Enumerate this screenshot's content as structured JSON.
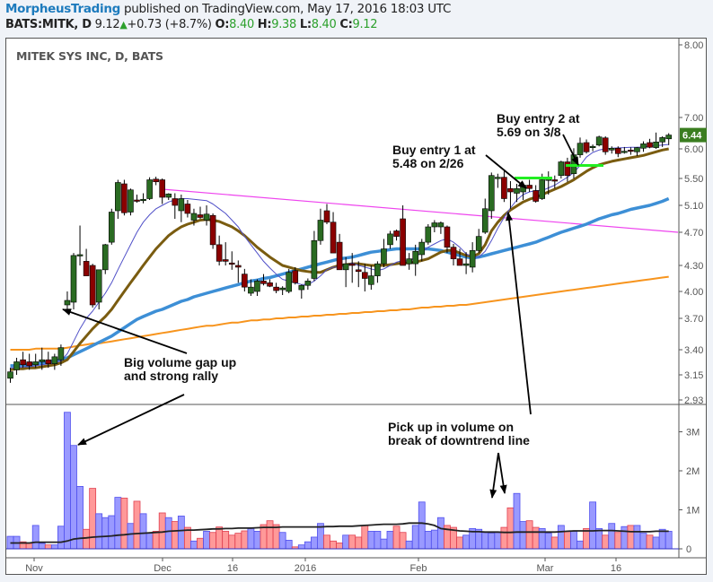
{
  "header": {
    "author": "MorpheusTrading",
    "published": " published on TradingView.com, May 17, 2016 18:03 UTC",
    "symbol": "BATS:MITK, D",
    "last": "9.12",
    "change": "+0.73 (+8.7%)",
    "o_label": "O:",
    "o": "8.40",
    "h_label": "H:",
    "h": "9.38",
    "l_label": "L:",
    "l": "8.40",
    "c_label": "C:",
    "c": "9.12"
  },
  "chart_title": "MITEK SYS INC, D, BATS",
  "colors": {
    "up": "#2a6b22",
    "down": "#8b0000",
    "sma10": "#5050c8",
    "sma20": "#7a5c10",
    "sma50": "#3d8fd6",
    "sma200": "#f7941d",
    "trendline": "#ee44ee",
    "buy_line": "#22ee22",
    "vol_up": "#9999ff",
    "vol_down": "#ff9999",
    "vol_ma": "#222222",
    "price_badge": "#3a7d20"
  },
  "annotations": {
    "gap": "Big volume gap up\nand strong rally",
    "entry1": "Buy entry 1 at\n5.48 on 2/26",
    "entry2": "Buy entry 2 at\n5.69 on 3/8",
    "volume": "Pick up in volume on\nbreak of downtrend line"
  },
  "chart_data": [
    {
      "type": "candlestick",
      "title": "MITEK SYS INC, D, BATS",
      "price_axis_ticks": [
        "8.00",
        "7.00",
        "6.44",
        "6.00",
        "5.50",
        "5.10",
        "4.70",
        "4.30",
        "4.00",
        "3.70",
        "3.40",
        "3.15",
        "2.93"
      ],
      "last_price_label": "6.44",
      "x_tick_labels": [
        "Nov",
        "Dec",
        "16",
        "2016",
        "Feb",
        "Mar",
        "16"
      ],
      "indicators": [
        "SMA10 (thin blue)",
        "SMA20 (brown)",
        "SMA50 (blue)",
        "SMA200 (orange)",
        "Downtrend line (magenta)"
      ],
      "buy_entries": [
        {
          "label": "Buy entry 1",
          "price": 5.48,
          "date": "2/26"
        },
        {
          "label": "Buy entry 2",
          "price": 5.69,
          "date": "3/8"
        }
      ],
      "candles": [
        [
          3.12,
          3.22,
          3.08,
          3.18
        ],
        [
          3.2,
          3.32,
          3.15,
          3.28
        ],
        [
          3.3,
          3.38,
          3.22,
          3.25
        ],
        [
          3.28,
          3.36,
          3.2,
          3.24
        ],
        [
          3.25,
          3.36,
          3.22,
          3.28
        ],
        [
          3.28,
          3.42,
          3.2,
          3.3
        ],
        [
          3.3,
          3.38,
          3.22,
          3.26
        ],
        [
          3.26,
          3.36,
          3.2,
          3.33
        ],
        [
          3.3,
          3.45,
          3.24,
          3.42
        ],
        [
          3.85,
          4.0,
          3.78,
          3.9
        ],
        [
          3.88,
          4.45,
          3.8,
          4.42
        ],
        [
          4.42,
          4.8,
          4.3,
          4.43
        ],
        [
          4.35,
          4.5,
          4.22,
          4.18
        ],
        [
          4.3,
          4.32,
          3.82,
          3.85
        ],
        [
          3.88,
          4.25,
          3.8,
          4.25
        ],
        [
          4.25,
          4.56,
          4.2,
          4.55
        ],
        [
          4.58,
          5.05,
          4.55,
          5.0
        ],
        [
          5.02,
          5.48,
          4.9,
          5.44
        ],
        [
          5.42,
          5.48,
          4.95,
          4.99
        ],
        [
          5.0,
          5.35,
          4.95,
          5.33
        ],
        [
          5.18,
          5.26,
          5.14,
          5.17
        ],
        [
          5.17,
          5.28,
          5.13,
          5.19
        ],
        [
          5.2,
          5.52,
          5.18,
          5.48
        ],
        [
          5.49,
          5.53,
          5.4,
          5.45
        ],
        [
          5.48,
          5.5,
          5.12,
          5.22
        ],
        [
          5.22,
          5.28,
          5.18,
          5.27
        ],
        [
          5.2,
          5.28,
          4.9,
          5.1
        ],
        [
          5.02,
          5.26,
          4.85,
          5.2
        ],
        [
          5.12,
          5.18,
          4.92,
          4.98
        ],
        [
          4.88,
          5.05,
          4.8,
          4.98
        ],
        [
          4.96,
          5.08,
          4.9,
          4.92
        ],
        [
          4.88,
          5.1,
          4.8,
          4.97
        ],
        [
          4.95,
          4.98,
          4.5,
          4.55
        ],
        [
          4.55,
          4.66,
          4.3,
          4.35
        ],
        [
          4.37,
          4.58,
          4.3,
          4.35
        ],
        [
          4.33,
          4.47,
          4.25,
          4.32
        ],
        [
          4.3,
          4.36,
          4.1,
          4.28
        ],
        [
          4.2,
          4.26,
          4.0,
          4.05
        ],
        [
          3.98,
          4.14,
          3.95,
          4.05
        ],
        [
          4.0,
          4.14,
          3.95,
          4.12
        ],
        [
          4.12,
          4.2,
          4.07,
          4.09
        ],
        [
          4.1,
          4.14,
          4.05,
          4.06
        ],
        [
          4.05,
          4.1,
          3.98,
          4.01
        ],
        [
          4.02,
          4.06,
          3.96,
          4.04
        ],
        [
          4.0,
          4.26,
          3.98,
          4.22
        ],
        [
          4.24,
          4.28,
          4.08,
          4.1
        ],
        [
          4.02,
          4.08,
          3.92,
          4.07
        ],
        [
          4.07,
          4.15,
          4.02,
          4.12
        ],
        [
          4.15,
          4.72,
          4.12,
          4.6
        ],
        [
          4.6,
          5.05,
          4.55,
          4.88
        ],
        [
          5.02,
          5.12,
          4.82,
          4.85
        ],
        [
          4.85,
          5.0,
          4.45,
          4.45
        ],
        [
          4.58,
          4.68,
          4.3,
          4.25
        ],
        [
          4.25,
          4.4,
          4.05,
          4.32
        ],
        [
          4.32,
          4.45,
          4.1,
          4.3
        ],
        [
          4.25,
          4.35,
          4.05,
          4.23
        ],
        [
          4.22,
          4.32,
          4.0,
          4.15
        ],
        [
          4.08,
          4.3,
          4.02,
          4.18
        ],
        [
          4.18,
          4.35,
          4.1,
          4.32
        ],
        [
          4.32,
          4.62,
          4.28,
          4.5
        ],
        [
          4.55,
          4.72,
          4.5,
          4.68
        ],
        [
          4.72,
          4.74,
          4.6,
          4.65
        ],
        [
          4.9,
          5.1,
          4.3,
          4.3
        ],
        [
          4.32,
          4.45,
          4.25,
          4.38
        ],
        [
          4.32,
          4.55,
          4.18,
          4.47
        ],
        [
          4.43,
          4.62,
          4.35,
          4.58
        ],
        [
          4.58,
          4.82,
          4.55,
          4.78
        ],
        [
          4.78,
          4.88,
          4.7,
          4.84
        ],
        [
          4.78,
          4.86,
          4.68,
          4.84
        ],
        [
          4.78,
          4.8,
          4.45,
          4.52
        ],
        [
          4.52,
          4.56,
          4.3,
          4.38
        ],
        [
          4.38,
          4.5,
          4.33,
          4.3
        ],
        [
          4.3,
          4.46,
          4.2,
          4.32
        ],
        [
          4.28,
          4.58,
          4.22,
          4.48
        ],
        [
          4.48,
          4.75,
          4.45,
          4.65
        ],
        [
          4.7,
          5.2,
          4.68,
          5.05
        ],
        [
          5.02,
          5.6,
          4.9,
          5.55
        ],
        [
          5.5,
          5.58,
          5.36,
          5.52
        ],
        [
          5.52,
          5.62,
          5.15,
          5.2
        ],
        [
          5.35,
          5.46,
          5.05,
          5.3
        ],
        [
          5.28,
          5.42,
          5.15,
          5.35
        ],
        [
          5.3,
          5.44,
          5.18,
          5.4
        ],
        [
          5.4,
          5.48,
          5.3,
          5.35
        ],
        [
          5.32,
          5.4,
          5.14,
          5.16
        ],
        [
          5.2,
          5.58,
          5.18,
          5.48
        ],
        [
          5.48,
          5.62,
          5.26,
          5.49
        ],
        [
          5.48,
          5.55,
          5.35,
          5.47
        ],
        [
          5.55,
          5.8,
          5.5,
          5.78
        ],
        [
          5.78,
          5.85,
          5.45,
          5.55
        ],
        [
          5.58,
          6.02,
          5.5,
          5.9
        ],
        [
          5.9,
          6.36,
          5.85,
          6.18
        ],
        [
          6.2,
          6.3,
          5.92,
          5.95
        ],
        [
          6.04,
          6.14,
          5.96,
          6.08
        ],
        [
          6.12,
          6.42,
          6.08,
          6.38
        ],
        [
          6.35,
          6.4,
          5.9,
          5.95
        ],
        [
          5.98,
          6.08,
          5.92,
          6.02
        ],
        [
          6.02,
          6.08,
          5.86,
          5.92
        ],
        [
          5.95,
          6.06,
          5.92,
          5.96
        ],
        [
          5.98,
          6.05,
          5.9,
          5.97
        ],
        [
          5.95,
          6.06,
          5.88,
          6.04
        ],
        [
          6.02,
          6.24,
          5.95,
          6.16
        ],
        [
          6.2,
          6.32,
          6.02,
          6.05
        ],
        [
          6.04,
          6.52,
          6.0,
          6.22
        ],
        [
          6.22,
          6.4,
          6.06,
          6.36
        ],
        [
          6.32,
          6.5,
          6.12,
          6.44
        ]
      ]
    },
    {
      "type": "bar",
      "title": "Volume",
      "y_axis_ticks": [
        "3M",
        "2M",
        "1M",
        "0"
      ],
      "x_tick_labels": [
        "Nov",
        "Dec",
        "16",
        "2016",
        "Feb",
        "Mar",
        "16"
      ],
      "volumes_M": [
        0.32,
        0.32,
        0.18,
        0.14,
        0.6,
        0.14,
        0.1,
        0.1,
        0.58,
        3.5,
        2.65,
        1.6,
        0.5,
        1.55,
        0.9,
        0.8,
        0.85,
        1.32,
        1.3,
        0.65,
        1.22,
        0.9,
        0.4,
        0.45,
        0.92,
        0.8,
        0.7,
        0.84,
        0.55,
        0.2,
        0.27,
        0.45,
        0.42,
        0.56,
        0.45,
        0.35,
        0.4,
        0.46,
        0.52,
        0.45,
        0.62,
        0.72,
        0.62,
        0.42,
        0.22,
        0.05,
        0.1,
        0.18,
        0.3,
        0.65,
        0.35,
        0.2,
        0.15,
        0.35,
        0.35,
        0.3,
        0.6,
        0.45,
        0.45,
        0.25,
        0.45,
        0.58,
        0.42,
        0.2,
        0.6,
        1.2,
        0.45,
        0.48,
        0.8,
        0.6,
        0.55,
        0.3,
        0.35,
        0.52,
        0.5,
        0.42,
        0.4,
        0.42,
        0.55,
        1.05,
        1.42,
        0.7,
        0.72,
        0.55,
        0.52,
        0.4,
        0.3,
        0.6,
        0.45,
        0.45,
        0.2,
        0.52,
        1.2,
        0.52,
        0.35,
        0.65,
        0.42,
        0.57,
        0.6,
        0.6,
        0.4,
        0.35,
        0.3,
        0.5,
        0.45
      ],
      "vol_ma_M": [
        0.15,
        0.15,
        0.15,
        0.15,
        0.17,
        0.17,
        0.17,
        0.17,
        0.17,
        0.2,
        0.25,
        0.27,
        0.28,
        0.3,
        0.31,
        0.32,
        0.33,
        0.35,
        0.36,
        0.38,
        0.39,
        0.4,
        0.41,
        0.42,
        0.43,
        0.45,
        0.46,
        0.47,
        0.48,
        0.48,
        0.49,
        0.5,
        0.51,
        0.51,
        0.52,
        0.52,
        0.53,
        0.53,
        0.53,
        0.54,
        0.55,
        0.55,
        0.55,
        0.56,
        0.56,
        0.56,
        0.56,
        0.56,
        0.56,
        0.56,
        0.57,
        0.57,
        0.58,
        0.58,
        0.58,
        0.59,
        0.6,
        0.61,
        0.62,
        0.63,
        0.63,
        0.63,
        0.64,
        0.66,
        0.66,
        0.66,
        0.64,
        0.6,
        0.52,
        0.5,
        0.48,
        0.46,
        0.45,
        0.44,
        0.44,
        0.43,
        0.43,
        0.43,
        0.42,
        0.42,
        0.43,
        0.43,
        0.43,
        0.43,
        0.43,
        0.43,
        0.43,
        0.44,
        0.45,
        0.46,
        0.46,
        0.46,
        0.46,
        0.47,
        0.47,
        0.47,
        0.46,
        0.45,
        0.44,
        0.44,
        0.44,
        0.44,
        0.45,
        0.45,
        0.45
      ]
    }
  ],
  "ma": {
    "sma10": [
      3.22,
      3.22,
      3.23,
      3.23,
      3.24,
      3.25,
      3.26,
      3.27,
      3.29,
      3.36,
      3.48,
      3.6,
      3.7,
      3.78,
      3.88,
      3.98,
      4.1,
      4.25,
      4.4,
      4.55,
      4.7,
      4.85,
      4.96,
      5.05,
      5.1,
      5.15,
      5.18,
      5.2,
      5.2,
      5.19,
      5.18,
      5.17,
      5.12,
      5.05,
      4.98,
      4.88,
      4.78,
      4.65,
      4.55,
      4.45,
      4.35,
      4.27,
      4.2,
      4.14,
      4.12,
      4.1,
      4.08,
      4.08,
      4.12,
      4.18,
      4.25,
      4.28,
      4.28,
      4.3,
      4.33,
      4.3,
      4.28,
      4.26,
      4.24,
      4.26,
      4.3,
      4.34,
      4.36,
      4.35,
      4.4,
      4.46,
      4.52,
      4.56,
      4.6,
      4.62,
      4.58,
      4.52,
      4.44,
      4.4,
      4.4,
      4.47,
      4.6,
      4.76,
      4.92,
      5.06,
      5.18,
      5.26,
      5.3,
      5.32,
      5.32,
      5.36,
      5.4,
      5.46,
      5.52,
      5.6,
      5.72,
      5.86,
      5.94,
      5.98,
      6.0,
      6.02,
      6.03,
      6.04,
      6.05,
      6.05,
      6.06,
      6.08,
      6.1,
      6.12,
      6.14
    ],
    "sma20": [
      3.2,
      3.21,
      3.21,
      3.22,
      3.22,
      3.23,
      3.24,
      3.25,
      3.27,
      3.3,
      3.38,
      3.46,
      3.53,
      3.6,
      3.66,
      3.72,
      3.8,
      3.9,
      4.0,
      4.1,
      4.2,
      4.3,
      4.4,
      4.5,
      4.58,
      4.66,
      4.72,
      4.78,
      4.82,
      4.85,
      4.88,
      4.89,
      4.88,
      4.86,
      4.82,
      4.78,
      4.72,
      4.66,
      4.59,
      4.52,
      4.46,
      4.4,
      4.35,
      4.3,
      4.28,
      4.26,
      4.24,
      4.23,
      4.22,
      4.22,
      4.25,
      4.28,
      4.3,
      4.31,
      4.32,
      4.32,
      4.31,
      4.3,
      4.3,
      4.3,
      4.31,
      4.32,
      4.33,
      4.33,
      4.34,
      4.36,
      4.38,
      4.42,
      4.46,
      4.48,
      4.48,
      4.45,
      4.42,
      4.41,
      4.44,
      4.55,
      4.72,
      4.85,
      4.95,
      5.03,
      5.09,
      5.15,
      5.19,
      5.22,
      5.26,
      5.3,
      5.34,
      5.38,
      5.43,
      5.48,
      5.55,
      5.62,
      5.68,
      5.73,
      5.76,
      5.79,
      5.81,
      5.83,
      5.85,
      5.87,
      5.89,
      5.92,
      5.95,
      5.98,
      6.0
    ],
    "sma50": [
      3.24,
      3.24,
      3.25,
      3.25,
      3.26,
      3.27,
      3.28,
      3.29,
      3.3,
      3.32,
      3.35,
      3.38,
      3.41,
      3.44,
      3.47,
      3.5,
      3.53,
      3.57,
      3.61,
      3.65,
      3.69,
      3.72,
      3.75,
      3.78,
      3.8,
      3.83,
      3.86,
      3.89,
      3.91,
      3.94,
      3.96,
      3.98,
      4.0,
      4.02,
      4.04,
      4.06,
      4.08,
      4.1,
      4.12,
      4.13,
      4.15,
      4.16,
      4.18,
      4.2,
      4.22,
      4.24,
      4.26,
      4.28,
      4.3,
      4.32,
      4.34,
      4.36,
      4.38,
      4.39,
      4.4,
      4.42,
      4.44,
      4.46,
      4.47,
      4.48,
      4.49,
      4.5,
      4.5,
      4.5,
      4.5,
      4.5,
      4.5,
      4.49,
      4.48,
      4.46,
      4.44,
      4.42,
      4.4,
      4.39,
      4.4,
      4.42,
      4.44,
      4.46,
      4.48,
      4.5,
      4.52,
      4.54,
      4.56,
      4.58,
      4.61,
      4.64,
      4.67,
      4.7,
      4.73,
      4.76,
      4.79,
      4.82,
      4.86,
      4.9,
      4.93,
      4.96,
      4.98,
      5.01,
      5.04,
      5.06,
      5.08,
      5.1,
      5.13,
      5.16,
      5.2
    ],
    "sma200": [
      3.4,
      3.4,
      3.4,
      3.4,
      3.41,
      3.41,
      3.41,
      3.41,
      3.41,
      3.42,
      3.43,
      3.44,
      3.45,
      3.46,
      3.46,
      3.47,
      3.48,
      3.49,
      3.5,
      3.51,
      3.52,
      3.53,
      3.54,
      3.55,
      3.56,
      3.57,
      3.58,
      3.59,
      3.6,
      3.61,
      3.62,
      3.63,
      3.63,
      3.64,
      3.65,
      3.66,
      3.66,
      3.67,
      3.68,
      3.68,
      3.69,
      3.69,
      3.7,
      3.7,
      3.71,
      3.71,
      3.72,
      3.72,
      3.73,
      3.73,
      3.74,
      3.74,
      3.75,
      3.75,
      3.76,
      3.76,
      3.77,
      3.77,
      3.78,
      3.78,
      3.79,
      3.79,
      3.8,
      3.8,
      3.81,
      3.82,
      3.82,
      3.83,
      3.83,
      3.84,
      3.84,
      3.85,
      3.85,
      3.86,
      3.87,
      3.88,
      3.89,
      3.9,
      3.91,
      3.92,
      3.93,
      3.94,
      3.95,
      3.96,
      3.97,
      3.98,
      3.99,
      4.0,
      4.01,
      4.02,
      4.03,
      4.04,
      4.05,
      4.06,
      4.07,
      4.08,
      4.09,
      4.1,
      4.11,
      4.12,
      4.13,
      4.14,
      4.15,
      4.16,
      4.17
    ]
  }
}
